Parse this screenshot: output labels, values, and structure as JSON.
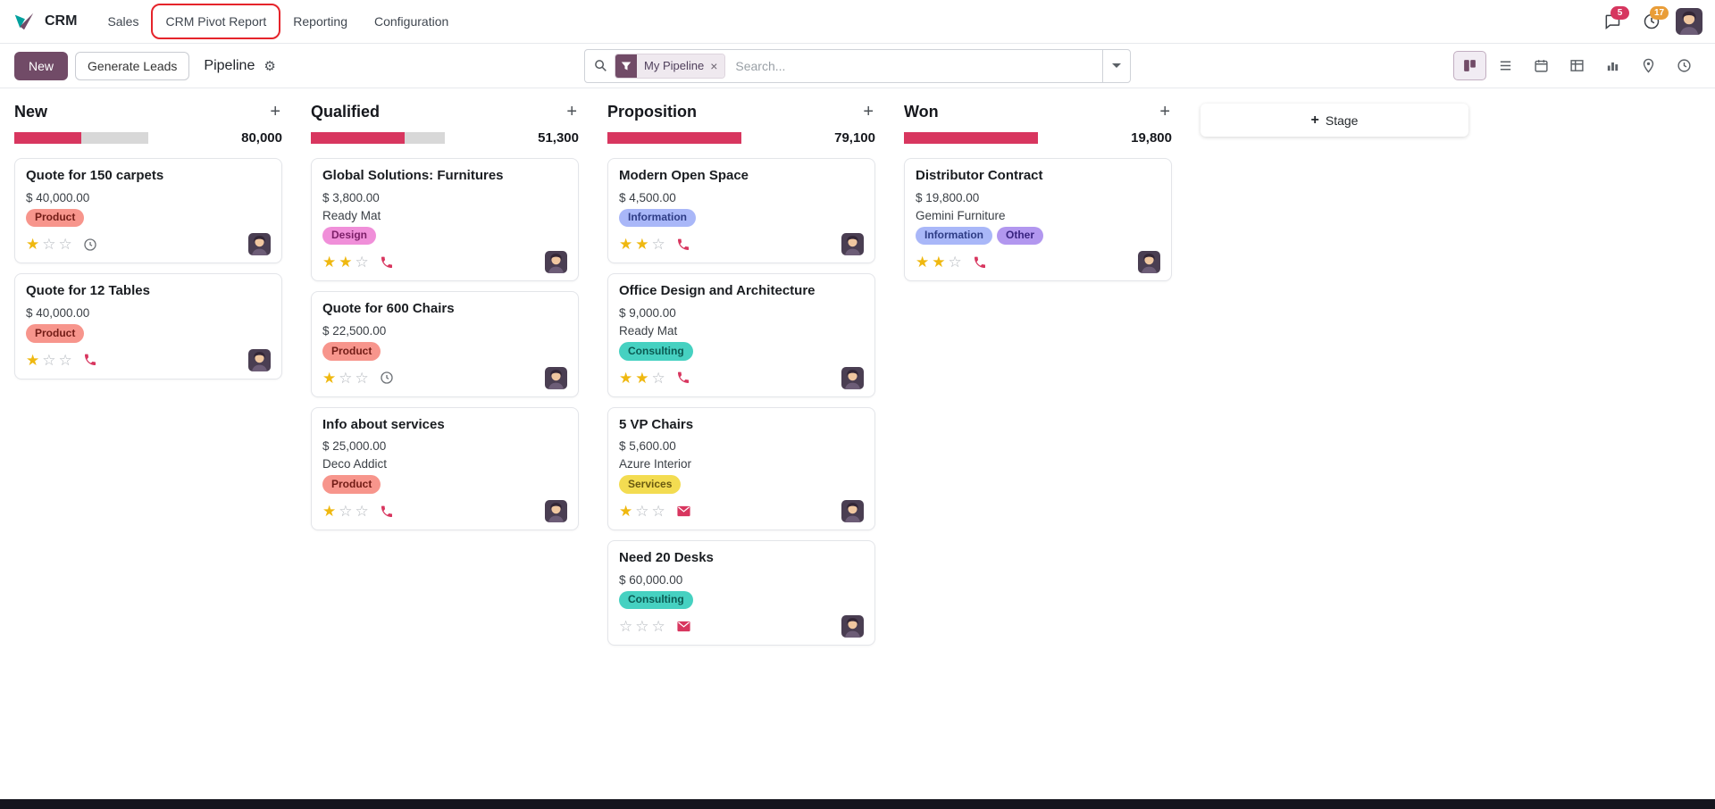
{
  "brand": {
    "primary": "#714B67"
  },
  "icons": {
    "plus": "+",
    "gear": "⚙",
    "close": "×",
    "star_filled": "★",
    "star_empty": "☆"
  },
  "navbar": {
    "app_name": "CRM",
    "menu_items": [
      {
        "label": "Sales",
        "annotated": false
      },
      {
        "label": "CRM Pivot Report",
        "annotated": true
      },
      {
        "label": "Reporting",
        "annotated": false
      },
      {
        "label": "Configuration",
        "annotated": false
      }
    ],
    "messages_badge": "5",
    "activities_badge": "17",
    "annotation_color": "#e5242b"
  },
  "control_panel": {
    "new_button_label": "New",
    "generate_leads_label": "Generate Leads",
    "breadcrumb_title": "Pipeline",
    "search": {
      "facet_label": "My Pipeline",
      "placeholder": "Search..."
    },
    "view_switcher": {
      "active": "kanban",
      "views": [
        "kanban",
        "list",
        "calendar",
        "pivot",
        "graph",
        "map",
        "activity"
      ]
    }
  },
  "board": {
    "accent": "#d8365f",
    "star_color": "#efb810",
    "star_empty_color": "#b4b8be",
    "clock_color": "#6e7277",
    "add_stage_label": "Stage",
    "tag_colors": {
      "red": {
        "bg": "#f7958c",
        "text": "#721c16"
      },
      "magenta": {
        "bg": "#f08fd9",
        "text": "#7c1f68"
      },
      "periwinkle": {
        "bg": "#a9b7f8",
        "text": "#2e3c85"
      },
      "teal": {
        "bg": "#46d1c1",
        "text": "#0b5a52"
      },
      "yellow": {
        "bg": "#f3dc51",
        "text": "#695910"
      },
      "purple": {
        "bg": "#b297ef",
        "text": "#392380"
      }
    },
    "columns": [
      {
        "name": "New",
        "total": "80,000",
        "progress_pct": 50,
        "cards": [
          {
            "title": "Quote for 150 carpets",
            "amount": "$ 40,000.00",
            "partner": null,
            "tags": [
              {
                "label": "Product",
                "color": "red"
              }
            ],
            "stars": 1,
            "activity": "clock"
          },
          {
            "title": "Quote for 12 Tables",
            "amount": "$ 40,000.00",
            "partner": null,
            "tags": [
              {
                "label": "Product",
                "color": "red"
              }
            ],
            "stars": 1,
            "activity": "phone"
          }
        ]
      },
      {
        "name": "Qualified",
        "total": "51,300",
        "progress_pct": 70,
        "cards": [
          {
            "title": "Global Solutions: Furnitures",
            "amount": "$ 3,800.00",
            "partner": "Ready Mat",
            "tags": [
              {
                "label": "Design",
                "color": "magenta"
              }
            ],
            "stars": 2,
            "activity": "phone"
          },
          {
            "title": "Quote for 600 Chairs",
            "amount": "$ 22,500.00",
            "partner": null,
            "tags": [
              {
                "label": "Product",
                "color": "red"
              }
            ],
            "stars": 1,
            "activity": "clock"
          },
          {
            "title": "Info about services",
            "amount": "$ 25,000.00",
            "partner": "Deco Addict",
            "tags": [
              {
                "label": "Product",
                "color": "red"
              }
            ],
            "stars": 1,
            "activity": "phone"
          }
        ]
      },
      {
        "name": "Proposition",
        "total": "79,100",
        "progress_pct": 100,
        "cards": [
          {
            "title": "Modern Open Space",
            "amount": "$ 4,500.00",
            "partner": null,
            "tags": [
              {
                "label": "Information",
                "color": "periwinkle"
              }
            ],
            "stars": 2,
            "activity": "phone"
          },
          {
            "title": "Office Design and Architecture",
            "amount": "$ 9,000.00",
            "partner": "Ready Mat",
            "tags": [
              {
                "label": "Consulting",
                "color": "teal"
              }
            ],
            "stars": 2,
            "activity": "phone"
          },
          {
            "title": "5 VP Chairs",
            "amount": "$ 5,600.00",
            "partner": "Azure Interior",
            "tags": [
              {
                "label": "Services",
                "color": "yellow"
              }
            ],
            "stars": 1,
            "activity": "envelope"
          },
          {
            "title": "Need 20 Desks",
            "amount": "$ 60,000.00",
            "partner": null,
            "tags": [
              {
                "label": "Consulting",
                "color": "teal"
              }
            ],
            "stars": 0,
            "activity": "envelope"
          }
        ]
      },
      {
        "name": "Won",
        "total": "19,800",
        "progress_pct": 100,
        "cards": [
          {
            "title": "Distributor Contract",
            "amount": "$ 19,800.00",
            "partner": "Gemini Furniture",
            "tags": [
              {
                "label": "Information",
                "color": "periwinkle"
              },
              {
                "label": "Other",
                "color": "purple"
              }
            ],
            "stars": 2,
            "activity": "phone"
          }
        ]
      }
    ]
  }
}
